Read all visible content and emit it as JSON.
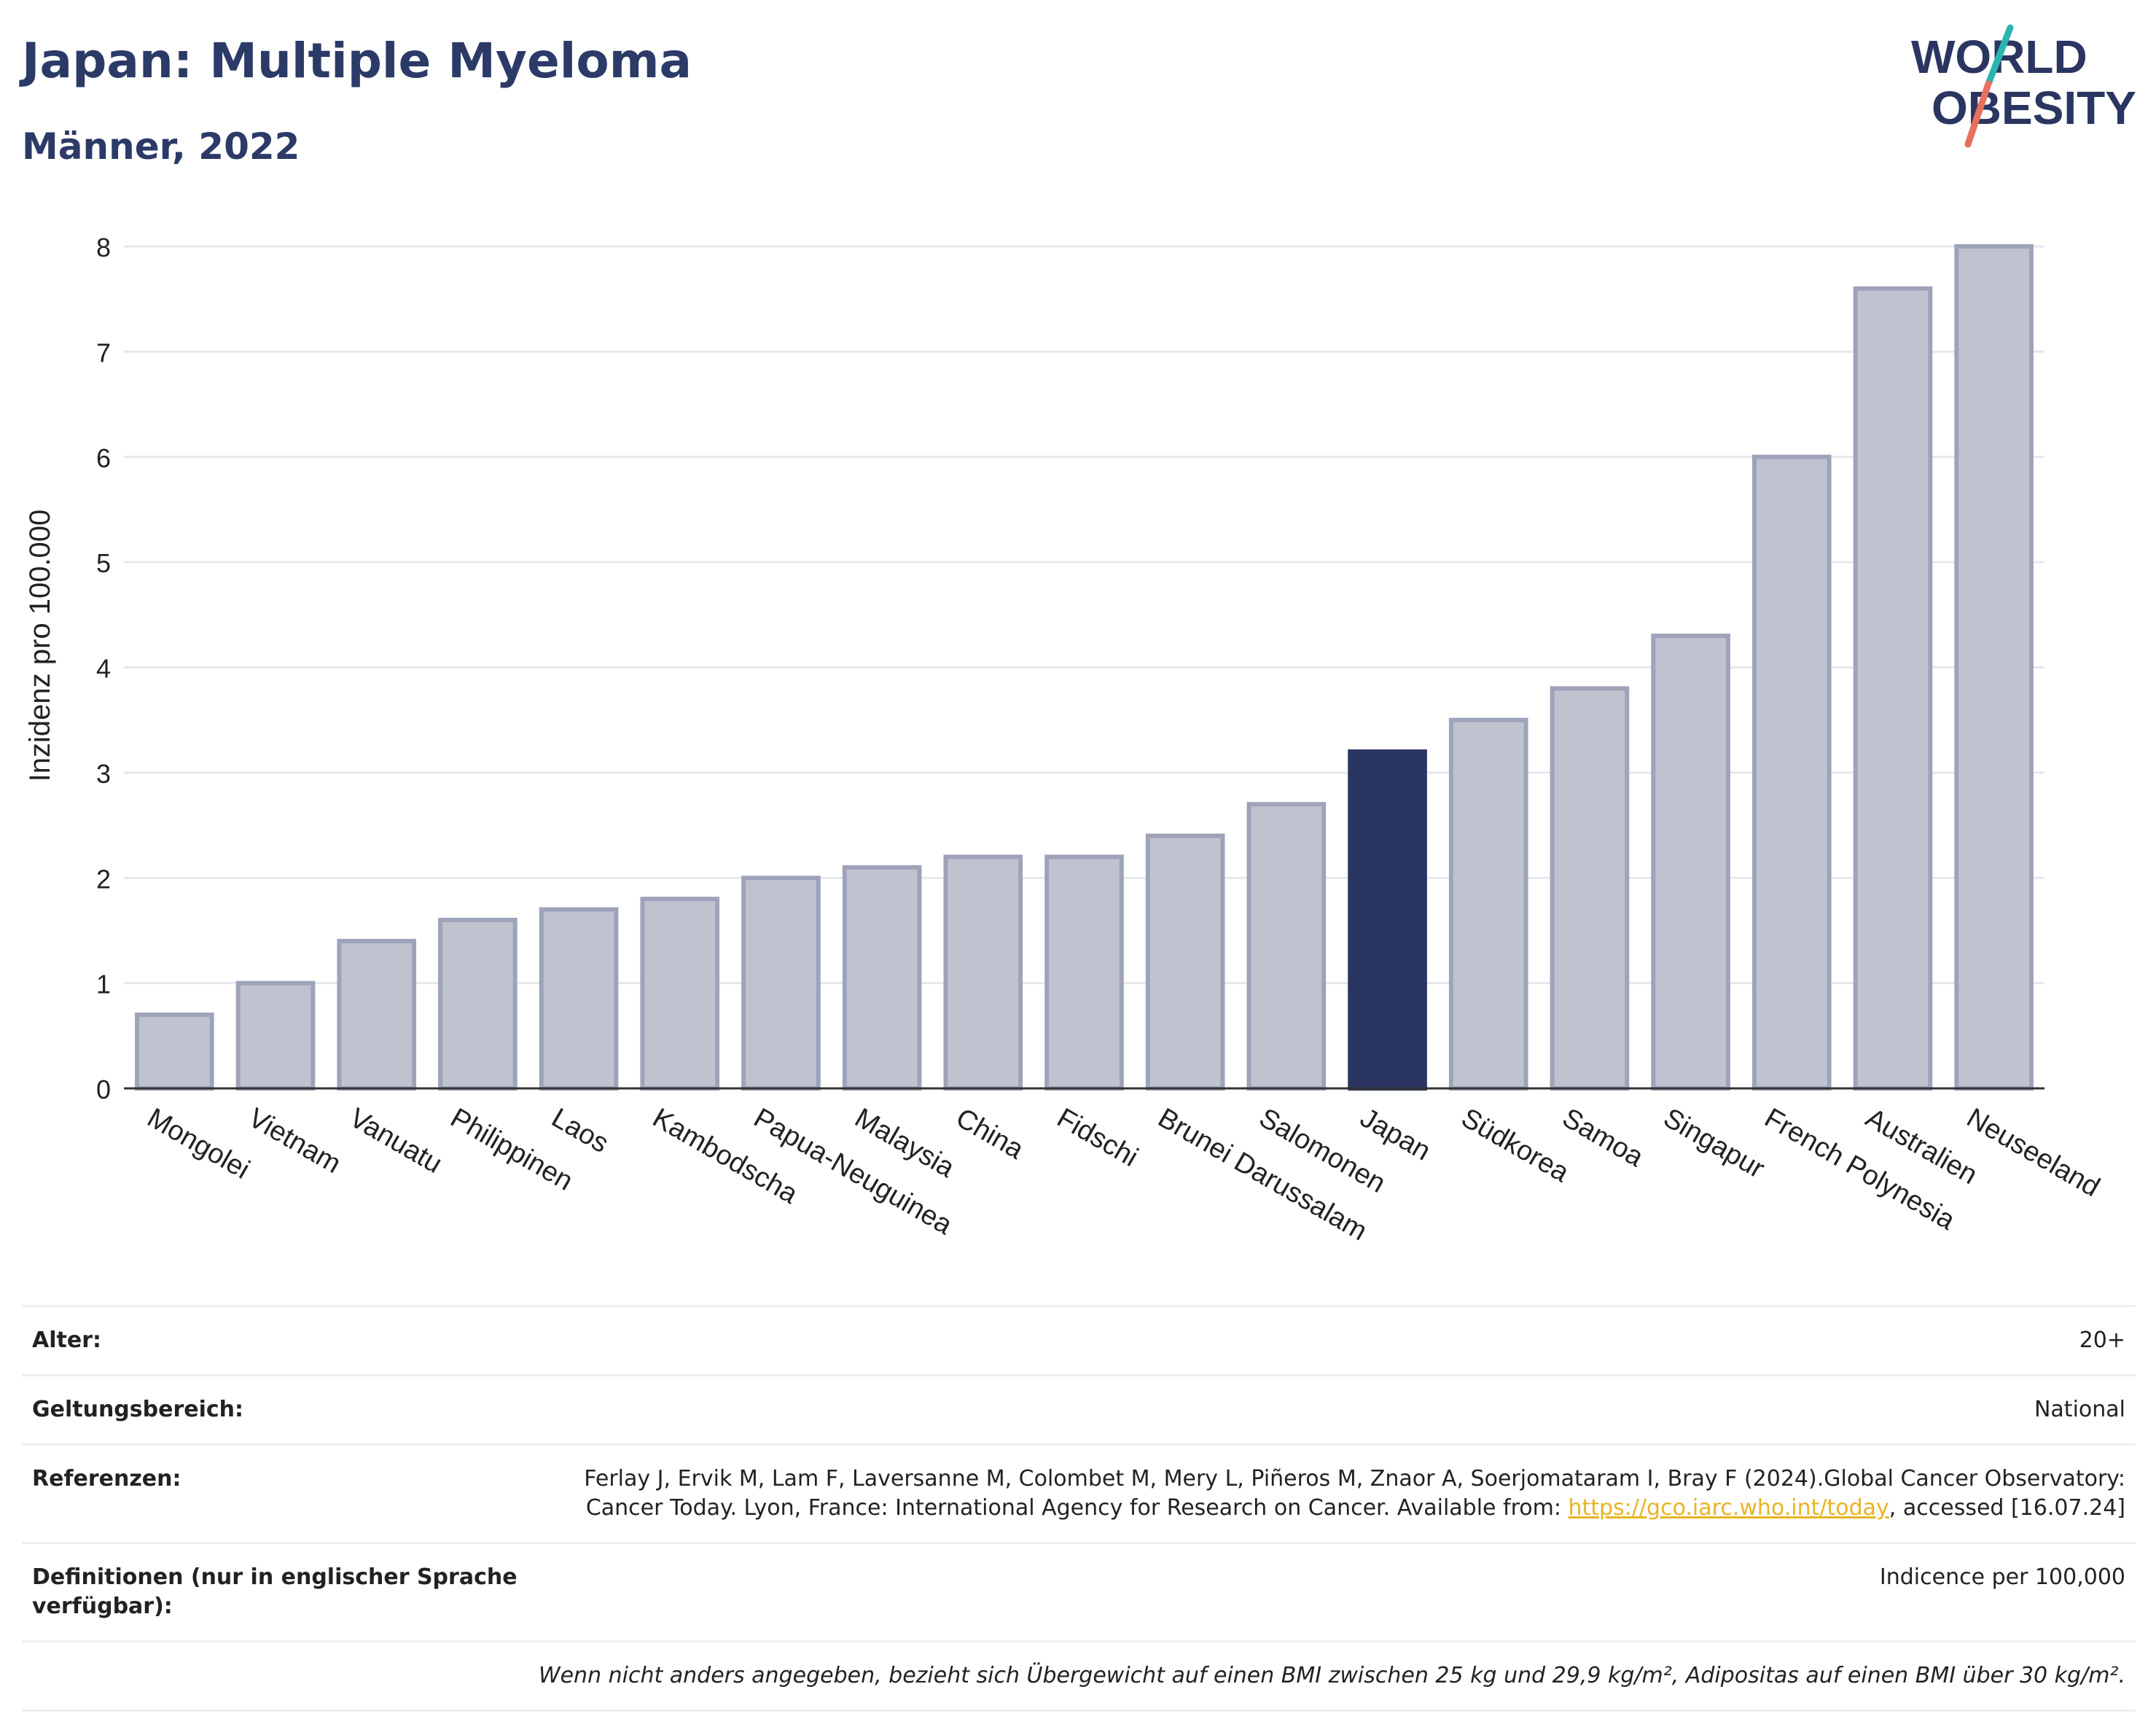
{
  "title": "Japan: Multiple Myeloma",
  "subtitle": "Männer, 2022",
  "logo": {
    "line1": "WORLD",
    "line2": "OBESITY"
  },
  "colors": {
    "bar": "#bfc3d0",
    "bar_border": "#9ea3b9",
    "highlight": "#2b3561",
    "grid": "#e6e7ec",
    "link": "#e8b423",
    "slash_teal": "#2bb5b1",
    "slash_coral": "#e8705e"
  },
  "chart_data": {
    "type": "bar",
    "title": "Japan: Multiple Myeloma",
    "subtitle": "Männer, 2022",
    "xlabel": "",
    "ylabel": "Inzidenz pro 100.000",
    "ylim": [
      0,
      8
    ],
    "yticks": [
      0,
      1,
      2,
      3,
      4,
      5,
      6,
      7,
      8
    ],
    "grid": true,
    "highlight": "Japan",
    "categories": [
      "Mongolei",
      "Vietnam",
      "Vanuatu",
      "Philippinen",
      "Laos",
      "Kambodscha",
      "Papua-Neuguinea",
      "Malaysia",
      "China",
      "Fidschi",
      "Brunei Darussalam",
      "Salomonen",
      "Japan",
      "Südkorea",
      "Samoa",
      "Singapur",
      "French Polynesia",
      "Australien",
      "Neuseeland"
    ],
    "values": [
      0.7,
      1.0,
      1.4,
      1.6,
      1.7,
      1.8,
      2.0,
      2.1,
      2.2,
      2.2,
      2.4,
      2.7,
      3.2,
      3.5,
      3.8,
      4.3,
      6.0,
      7.6,
      8.0
    ]
  },
  "meta": {
    "age_label": "Alter:",
    "age_value": "20+",
    "scope_label": "Geltungsbereich:",
    "scope_value": "National",
    "ref_label": "Referenzen:",
    "ref_text_1": "Ferlay J, Ervik M, Lam F, Laversanne M, Colombet M, Mery L, Piñeros M, Znaor A, Soerjomataram I, Bray F (2024).Global Cancer Observatory: Cancer Today. Lyon, France: International Agency for Research on Cancer. Available from: ",
    "ref_link": "https://gco.iarc.who.int/today",
    "ref_text_2": ", accessed [16.07.24]",
    "def_label": "Definitionen (nur in englischer Sprache verfügbar):",
    "def_value": "Indicence per 100,000",
    "note": "Wenn nicht anders angegeben, bezieht sich Übergewicht auf einen BMI zwischen 25 kg und 29,9 kg/m², Adipositas auf einen BMI über 30 kg/m²."
  }
}
